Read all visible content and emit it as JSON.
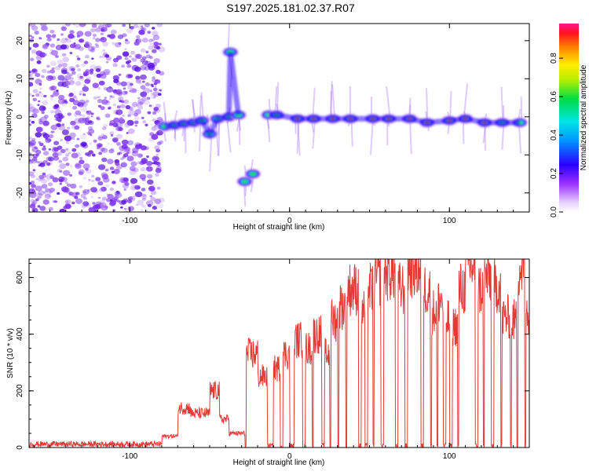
{
  "title": "S197.2025.181.02.37.R07",
  "colors": {
    "snr_line": "#e53935",
    "axis": "#000000",
    "noise": "#8a3ff0"
  },
  "chart_data": [
    {
      "type": "heatmap",
      "xlabel": "Height of straight line (km)",
      "ylabel": "Frequency (Hz)",
      "xlim": [
        -163,
        150
      ],
      "ylim": [
        -25,
        24.5
      ],
      "xticks": [
        -100,
        0,
        100
      ],
      "yticks": [
        -20,
        -10,
        0,
        10,
        20
      ],
      "colorbar": {
        "label": "Normalized spectral amplitude",
        "range": [
          0,
          0.98
        ],
        "ticks": [
          0.0,
          0.2,
          0.4,
          0.6,
          0.8
        ]
      },
      "noise_region_x": [
        -163,
        -80
      ],
      "track": [
        {
          "x": -78,
          "f": -2.5
        },
        {
          "x": -72,
          "f": -2.2
        },
        {
          "x": -66,
          "f": -1.8
        },
        {
          "x": -60,
          "f": -1.5
        },
        {
          "x": -55,
          "f": -1.0
        },
        {
          "x": -50,
          "f": -4.5
        },
        {
          "x": -45,
          "f": -0.5
        },
        {
          "x": -38,
          "f": 0.0
        },
        {
          "x": -32,
          "f": 0.5
        },
        {
          "x": -28,
          "f": -17.0
        },
        {
          "x": -23,
          "f": -15.0
        },
        {
          "x": -13,
          "f": 0.5
        },
        {
          "x": -8,
          "f": 0.5
        },
        {
          "x": 5,
          "f": -0.5
        },
        {
          "x": 15,
          "f": -0.5
        },
        {
          "x": 27,
          "f": -0.5
        },
        {
          "x": 38,
          "f": -0.5
        },
        {
          "x": 52,
          "f": -0.5
        },
        {
          "x": 62,
          "f": -0.5
        },
        {
          "x": 75,
          "f": -0.5
        },
        {
          "x": 86,
          "f": -1.5
        },
        {
          "x": 100,
          "f": -1.0
        },
        {
          "x": 110,
          "f": -0.5
        },
        {
          "x": 122,
          "f": -1.5
        },
        {
          "x": 133,
          "f": -1.5
        },
        {
          "x": 144,
          "f": -1.5
        },
        {
          "x": -37,
          "f": 17.0
        }
      ]
    },
    {
      "type": "line",
      "xlabel": "Height of straight line (km)",
      "ylabel": "SNR (10 * v/v)",
      "xlim": [
        -163,
        150
      ],
      "ylim": [
        0,
        665
      ],
      "xticks": [
        -100,
        0,
        100
      ],
      "yticks": [
        0,
        200,
        400,
        600
      ],
      "series": [
        {
          "segments": [
            {
              "x0": -163,
              "x1": -80,
              "level": 12
            },
            {
              "x0": -80,
              "x1": -70,
              "level": 40
            },
            {
              "x0": -70,
              "x1": -62,
              "level": 140
            },
            {
              "x0": -62,
              "x1": -50,
              "level": 120
            },
            {
              "x0": -50,
              "x1": -44,
              "level": 200
            },
            {
              "x0": -44,
              "x1": -38,
              "level": 100
            },
            {
              "x0": -38,
              "x1": -28,
              "level": 50
            },
            {
              "x0": -27,
              "x1": -20,
              "level": 330
            },
            {
              "x0": -20,
              "x1": -14,
              "level": 250
            },
            {
              "x0": -10,
              "x1": -6,
              "level": 280
            },
            {
              "x0": -4,
              "x1": 0,
              "level": 330
            },
            {
              "x0": 3,
              "x1": 8,
              "level": 380
            },
            {
              "x0": 10,
              "x1": 14,
              "level": 350
            },
            {
              "x0": 15,
              "x1": 20,
              "level": 400
            },
            {
              "x0": 22,
              "x1": 25,
              "level": 330
            },
            {
              "x0": 26,
              "x1": 30,
              "level": 450
            },
            {
              "x0": 31,
              "x1": 35,
              "level": 500
            },
            {
              "x0": 36,
              "x1": 43,
              "level": 560
            },
            {
              "x0": 45,
              "x1": 47,
              "level": 480
            },
            {
              "x0": 49,
              "x1": 52,
              "level": 560
            },
            {
              "x0": 53,
              "x1": 57,
              "level": 600
            },
            {
              "x0": 59,
              "x1": 66,
              "level": 620
            },
            {
              "x0": 68,
              "x1": 72,
              "level": 560
            },
            {
              "x0": 74,
              "x1": 82,
              "level": 635
            },
            {
              "x0": 84,
              "x1": 88,
              "level": 560
            },
            {
              "x0": 89,
              "x1": 92,
              "level": 480
            },
            {
              "x0": 93,
              "x1": 96,
              "level": 520
            },
            {
              "x0": 98,
              "x1": 100,
              "level": 450
            },
            {
              "x0": 102,
              "x1": 105,
              "level": 430
            },
            {
              "x0": 106,
              "x1": 110,
              "level": 560
            },
            {
              "x0": 110,
              "x1": 116,
              "level": 640
            },
            {
              "x0": 118,
              "x1": 121,
              "level": 560
            },
            {
              "x0": 122,
              "x1": 126,
              "level": 600
            },
            {
              "x0": 128,
              "x1": 132,
              "level": 570
            },
            {
              "x0": 133,
              "x1": 138,
              "level": 460
            },
            {
              "x0": 139,
              "x1": 142,
              "level": 450
            },
            {
              "x0": 143,
              "x1": 147,
              "level": 630
            },
            {
              "x0": 148,
              "x1": 150,
              "level": 480
            }
          ],
          "baseline": 5
        }
      ]
    }
  ]
}
